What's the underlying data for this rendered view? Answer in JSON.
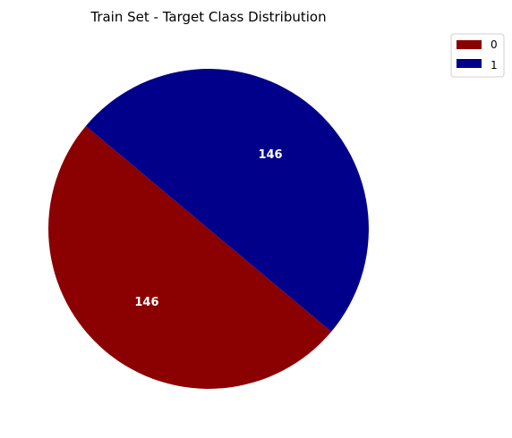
{
  "chart_data": {
    "type": "pie",
    "title": "Train Set - Target Class Distribution",
    "slices": [
      {
        "label": "0",
        "value": 146,
        "color": "#8b0000"
      },
      {
        "label": "1",
        "value": 146,
        "color": "#00008b"
      }
    ],
    "start_angle_deg": 140,
    "direction": "counterclockwise",
    "legend": {
      "placement": "upper-right",
      "entries": [
        "0",
        "1"
      ]
    }
  }
}
